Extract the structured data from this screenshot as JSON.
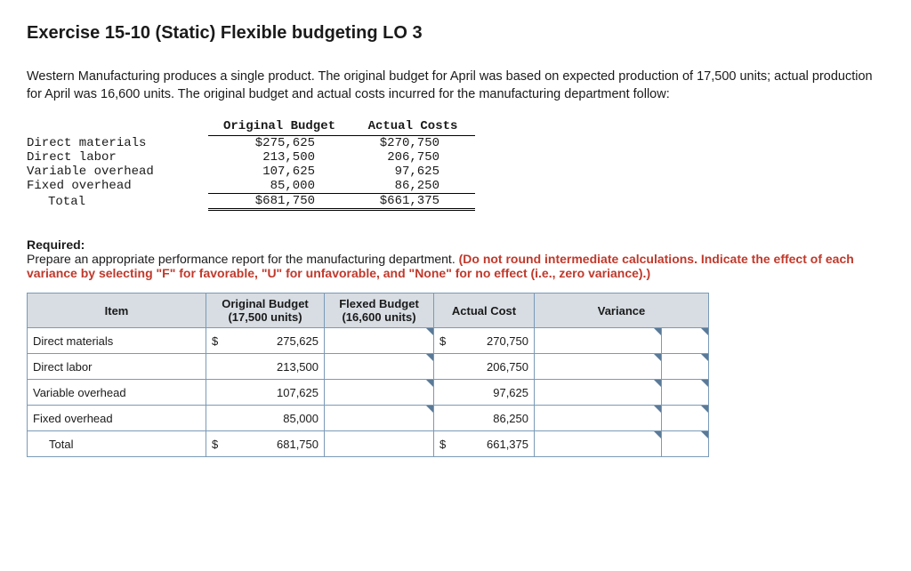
{
  "title": "Exercise 15-10 (Static) Flexible budgeting LO 3",
  "intro": "Western Manufacturing produces a single product. The original budget for April was based on expected production of 17,500 units; actual production for April was 16,600 units. The original budget and actual costs incurred for the manufacturing department follow:",
  "mono_table": {
    "headers": {
      "label": "",
      "orig": "Original Budget",
      "act": "Actual Costs"
    },
    "rows": [
      {
        "label": "Direct materials",
        "orig": "$275,625",
        "act": "$270,750"
      },
      {
        "label": "Direct labor",
        "orig": "213,500",
        "act": "206,750"
      },
      {
        "label": "Variable overhead",
        "orig": "107,625",
        "act": "97,625"
      },
      {
        "label": "Fixed overhead",
        "orig": "85,000",
        "act": "86,250"
      }
    ],
    "total": {
      "label": "Total",
      "orig": "$681,750",
      "act": "$661,375"
    }
  },
  "required_label": "Required:",
  "required_text": "Prepare an appropriate performance report for the manufacturing department. ",
  "required_red": "(Do not round intermediate calculations. Indicate the effect of each variance by selecting \"F\" for favorable, \"U\" for unfavorable, and \"None\" for no effect (i.e., zero variance).)",
  "grid": {
    "headers": {
      "item": "Item",
      "orig": "Original Budget\n(17,500 units)",
      "flex": "Flexed Budget\n(16,600 units)",
      "act": "Actual Cost",
      "var": "Variance"
    },
    "rows": [
      {
        "item": "Direct materials",
        "orig_sym": "$",
        "orig": "275,625",
        "flex": "",
        "act_sym": "$",
        "act": "270,750",
        "var": "",
        "fu": ""
      },
      {
        "item": "Direct labor",
        "orig_sym": "",
        "orig": "213,500",
        "flex": "",
        "act_sym": "",
        "act": "206,750",
        "var": "",
        "fu": ""
      },
      {
        "item": "Variable overhead",
        "orig_sym": "",
        "orig": "107,625",
        "flex": "",
        "act_sym": "",
        "act": "97,625",
        "var": "",
        "fu": ""
      },
      {
        "item": "Fixed overhead",
        "orig_sym": "",
        "orig": "85,000",
        "flex": "",
        "act_sym": "",
        "act": "86,250",
        "var": "",
        "fu": ""
      }
    ],
    "total": {
      "item": "Total",
      "orig_sym": "$",
      "orig": "681,750",
      "flex": "",
      "act_sym": "$",
      "act": "661,375",
      "var": "",
      "fu": ""
    }
  },
  "colors": {
    "header_bg": "#d7dde3",
    "border": "#7a9ab8",
    "flag": "#5a7a98",
    "red": "#c0392b"
  }
}
